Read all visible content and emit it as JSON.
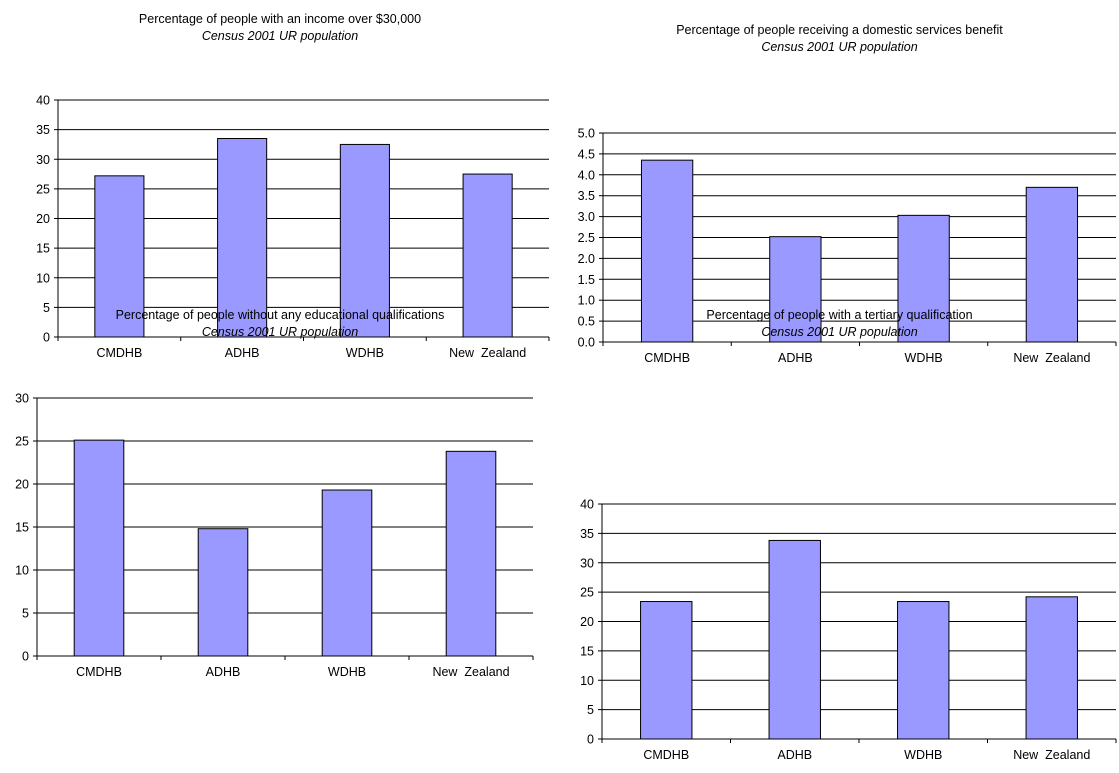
{
  "chart_data": [
    {
      "type": "bar",
      "title": "Percentage of people with an income over $30,000",
      "subtitle": "Census 2001 UR population",
      "categories": [
        "CMDHB",
        "ADHB",
        "WDHB",
        "New  Zealand"
      ],
      "values": [
        27.2,
        33.5,
        32.5,
        27.5
      ],
      "ylim": [
        0,
        40
      ],
      "yticks": [
        "0",
        "5",
        "10",
        "15",
        "20",
        "25",
        "30",
        "35",
        "40"
      ],
      "grid": true,
      "bar_color": "#9999ff"
    },
    {
      "type": "bar",
      "title": "Percentage of people receiving a domestic services benefit",
      "subtitle": "Census 2001 UR population",
      "categories": [
        "CMDHB",
        "ADHB",
        "WDHB",
        "New  Zealand"
      ],
      "values": [
        4.35,
        2.52,
        3.03,
        3.7
      ],
      "ylim": [
        0,
        5
      ],
      "yticks": [
        "0.0",
        "0.5",
        "1.0",
        "1.5",
        "2.0",
        "2.5",
        "3.0",
        "3.5",
        "4.0",
        "4.5",
        "5.0"
      ],
      "grid": true,
      "bar_color": "#9999ff"
    },
    {
      "type": "bar",
      "title": "Percentage of people without any educational qualifications",
      "subtitle": "Census 2001 UR population",
      "categories": [
        "CMDHB",
        "ADHB",
        "WDHB",
        "New  Zealand"
      ],
      "values": [
        25.1,
        14.8,
        19.3,
        23.8
      ],
      "ylim": [
        0,
        30
      ],
      "yticks": [
        "0",
        "5",
        "10",
        "15",
        "20",
        "25",
        "30"
      ],
      "grid": true,
      "bar_color": "#9999ff"
    },
    {
      "type": "bar",
      "title": "Percentage of people with a tertiary qualification",
      "subtitle": "Census 2001 UR population",
      "categories": [
        "CMDHB",
        "ADHB",
        "WDHB",
        "New  Zealand"
      ],
      "values": [
        23.4,
        33.8,
        23.4,
        24.2
      ],
      "ylim": [
        0,
        40
      ],
      "yticks": [
        "0",
        "5",
        "10",
        "15",
        "20",
        "25",
        "30",
        "35",
        "40"
      ],
      "grid": true,
      "bar_color": "#9999ff"
    }
  ]
}
